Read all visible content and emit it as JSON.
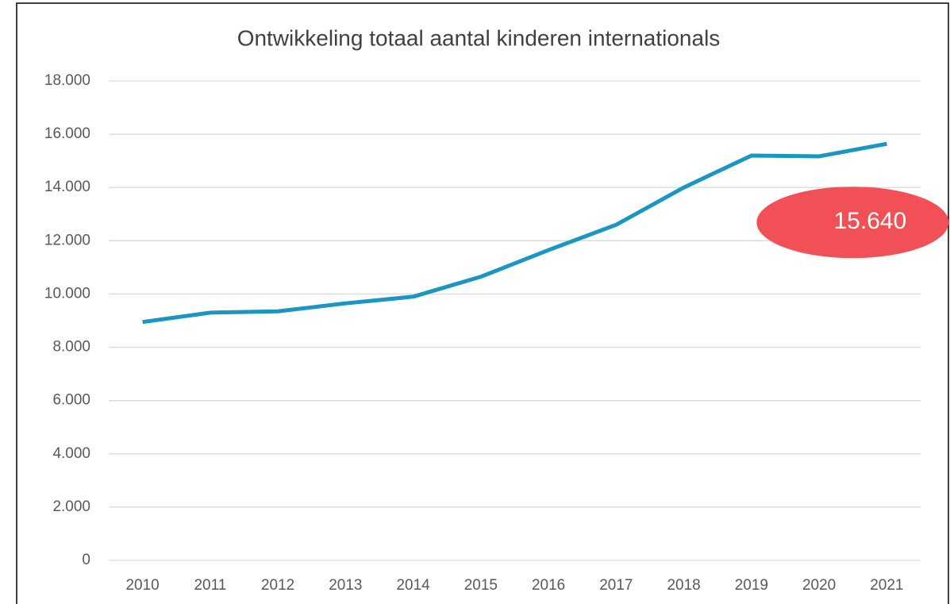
{
  "chart_data": {
    "type": "line",
    "title": "Ontwikkeling totaal aantal kinderen internationals",
    "categories": [
      "2010",
      "2011",
      "2012",
      "2013",
      "2014",
      "2015",
      "2016",
      "2017",
      "2018",
      "2019",
      "2020",
      "2021"
    ],
    "series": [
      {
        "name": "Totaal aantal kinderen internationals",
        "color": "#1a96c0",
        "values": [
          8950,
          9300,
          9350,
          9650,
          9900,
          10650,
          11650,
          12600,
          14000,
          15200,
          15170,
          15640
        ]
      }
    ],
    "value_labels": [
      null,
      null,
      null,
      null,
      null,
      null,
      null,
      null,
      null,
      null,
      null,
      "15.640"
    ],
    "annotation_color": "#f05056",
    "ylim": [
      0,
      18000
    ],
    "yticks": [
      0,
      {
        "value": 2000,
        "label": "2.000"
      },
      {
        "value": 4000,
        "label": "4.000"
      },
      {
        "value": 6000,
        "label": "6.000"
      },
      {
        "value": 8000,
        "label": "8.000"
      },
      {
        "value": 10000,
        "label": "10.000"
      },
      {
        "value": 12000,
        "label": "12.000"
      },
      {
        "value": 14000,
        "label": "14.000"
      },
      {
        "value": 16000,
        "label": "16.000"
      },
      {
        "value": 18000,
        "label": "18.000"
      }
    ],
    "grid": true
  }
}
